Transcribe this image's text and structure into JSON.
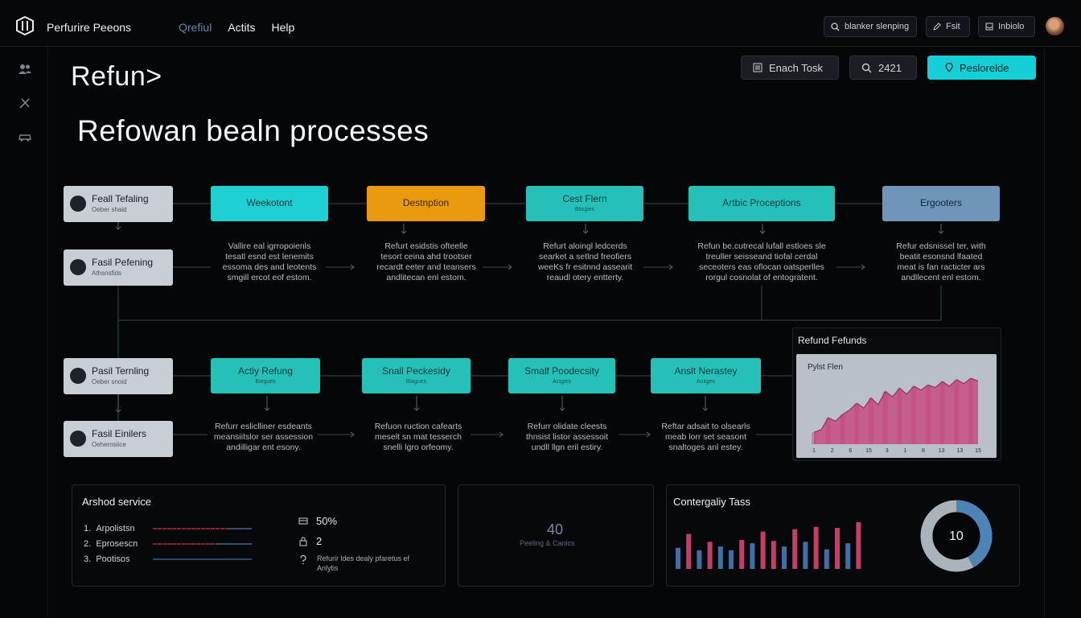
{
  "topbar": {
    "app_title": "Perfurire Peeons",
    "nav": [
      "Qrefiul",
      "Actits",
      "Help"
    ],
    "search_label": "blanker slenping",
    "edit_label": "Fsit",
    "inbox_label": "Inbiolo"
  },
  "header": {
    "title": "Refun>",
    "hero": "Refowan bealn processes",
    "task_button": "Enach Tosk",
    "count_button": "2421",
    "primary_button": "Peslorelde"
  },
  "stages": [
    {
      "title": "Feall Tefaling",
      "sub": "Oeber shaid"
    },
    {
      "title": "Fasil Pefening",
      "sub": "Athsnsfids"
    },
    {
      "title": "Pasil Ternling",
      "sub": "Oeber snoid"
    },
    {
      "title": "Fasil Einilers",
      "sub": "Oehernsiice"
    }
  ],
  "flow_top": [
    {
      "title": "Weekotont",
      "sub": ""
    },
    {
      "title": "Destnption",
      "sub": ""
    },
    {
      "title": "Cest Flern",
      "sub": "Blisgies"
    },
    {
      "title": "Artbic Proceptions",
      "sub": ""
    },
    {
      "title": "Ergooters",
      "sub": ""
    }
  ],
  "desc_top": [
    "Vallire eal igrropoienls\ntesatl esnd est lenemits\nessoma des and leotents\nsmgill ercot eof estom.",
    "Refurt esidstis ofteelle\ntesort ceina ahd trootser\nrecardt eeter and teansers\nandlitecan enl estom.",
    "Refurt aloingl ledcerds\nsearket a setlnd freofiers\nweeKs fr esitnnd assearit\nreaudl otery entterty.",
    "Refun be.cutrecal lufall estloes sle\ntreuller seisseand tiofal cerdal\nseceoters eas oflocan oatsperlles\nrorgul cosnolat of entogratent.",
    "Refur edsnissel ter, with\nbeatit esonsnd lfaated\nmeat is fan racticter ars\nandllecent enl estom."
  ],
  "flow_bottom": [
    {
      "title": "Actiy Refung",
      "sub": "Biegues"
    },
    {
      "title": "Snall Peckesidy",
      "sub": "Blagues"
    },
    {
      "title": "Smalf Poodecsity",
      "sub": "Actgies"
    },
    {
      "title": "Anslt Nerastey",
      "sub": "Anliges"
    }
  ],
  "desc_bottom": [
    "Refurr esliclliner esdeants\nmeansiitslor ser assession\nandilligar ent esony.",
    "Refuon ruction cafearts\nmeselt sn mat tesserch\nsnelli lgro orfeomy.",
    "Refurr olidate cleests\nthnsist listor assessoit\nundll llgn eril estiry.",
    "Reftar adsait to olsearls\nmeab lorr set seasont\nsnaltoges anl estey."
  ],
  "refund_chart": {
    "title": "Refund Fefunds",
    "subtitle": "Pylst Flen",
    "tick_labels": [
      "1",
      "2",
      "6",
      "15",
      "3",
      "1",
      "8",
      "13",
      "13",
      "15"
    ],
    "values": [
      18,
      22,
      40,
      35,
      45,
      52,
      62,
      55,
      70,
      60,
      80,
      72,
      85,
      76,
      88,
      82,
      90,
      86,
      95,
      88,
      98,
      92,
      100,
      96
    ],
    "ylim": [
      0,
      110
    ],
    "colors": {
      "fill": "#c7437c",
      "bars": "#a94f86"
    }
  },
  "service_panel": {
    "title": "Arshod service",
    "items": [
      {
        "num": "1.",
        "label": "Arpolistsn",
        "color": "#c53a4f"
      },
      {
        "num": "2.",
        "label": "Eprosescn",
        "color": "#c53a4f"
      },
      {
        "num": "3.",
        "label": "Pootisos",
        "color": "#3f6fa6"
      }
    ],
    "stats": [
      "50%",
      "2"
    ],
    "note": "Refurir ldes dealy pfaretus ef\nAnlytis"
  },
  "middle_panel": {
    "value": "40",
    "label": "Peeling & Canics"
  },
  "category_panel": {
    "title": "Contergaliy Tass",
    "bars": [
      {
        "value": 45,
        "color": "#3f6fa6"
      },
      {
        "value": 75,
        "color": "#c23f68"
      },
      {
        "value": 40,
        "color": "#3f6fa6"
      },
      {
        "value": 58,
        "color": "#c23f68"
      },
      {
        "value": 48,
        "color": "#3f6fa6"
      },
      {
        "value": 40,
        "color": "#3f6fa6"
      },
      {
        "value": 62,
        "color": "#c23f68"
      },
      {
        "value": 55,
        "color": "#3f6fa6"
      },
      {
        "value": 80,
        "color": "#c23f68"
      },
      {
        "value": 60,
        "color": "#c23f68"
      },
      {
        "value": 48,
        "color": "#3f6fa6"
      },
      {
        "value": 85,
        "color": "#c23f68"
      },
      {
        "value": 58,
        "color": "#3f6fa6"
      },
      {
        "value": 90,
        "color": "#c23f68"
      },
      {
        "value": 42,
        "color": "#3f6fa6"
      },
      {
        "value": 88,
        "color": "#c23f68"
      },
      {
        "value": 55,
        "color": "#3f6fa6"
      },
      {
        "value": 100,
        "color": "#c23f68"
      }
    ],
    "donut": {
      "label": "10",
      "fraction": 0.42,
      "colors": {
        "accent": "#4d83b6",
        "track": "#aab2ba"
      }
    }
  }
}
